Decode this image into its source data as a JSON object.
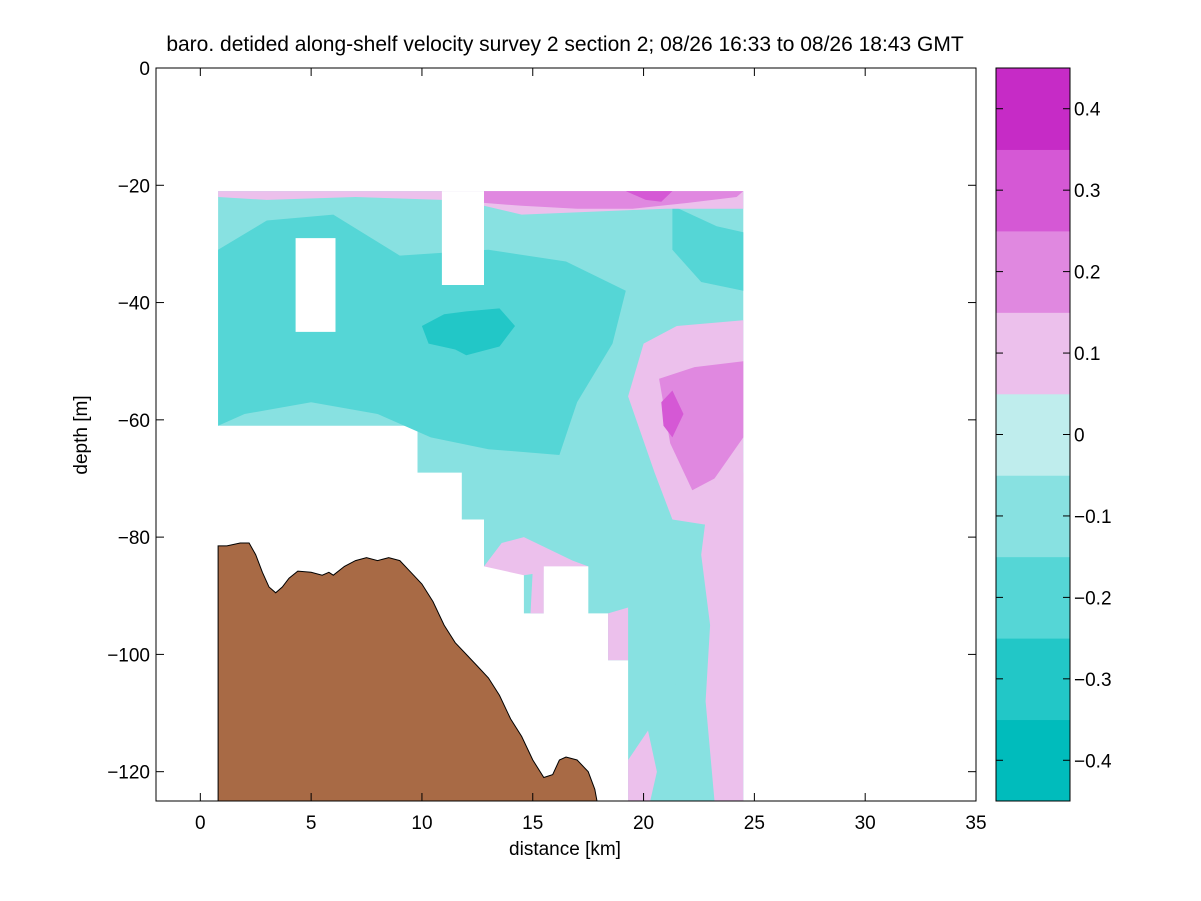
{
  "chart_data": {
    "type": "contour",
    "title": "baro. detided along-shelf velocity survey 2 section 2; 08/26 16:33 to 08/26 18:43 GMT",
    "xlabel": "distance [km]",
    "ylabel": "depth [m]",
    "xlim": [
      -2,
      35
    ],
    "ylim": [
      -125,
      0
    ],
    "xticks": [
      0,
      5,
      10,
      15,
      20,
      25,
      30,
      35
    ],
    "yticks": [
      0,
      -20,
      -40,
      -60,
      -80,
      -100,
      -120
    ],
    "colorbar": {
      "range": [
        -0.45,
        0.45
      ],
      "ticks": [
        0.4,
        0.3,
        0.2,
        0.1,
        0,
        -0.1,
        -0.2,
        -0.3,
        -0.4
      ],
      "tick_labels": [
        "0.4",
        "0.3",
        "0.2",
        "0.1",
        "0",
        "−0.1",
        "−0.2",
        "−0.3",
        "−0.4"
      ],
      "bands": [
        {
          "lo": -0.45,
          "hi": -0.35,
          "color": "#00bcbc"
        },
        {
          "lo": -0.35,
          "hi": -0.25,
          "color": "#22c7c7"
        },
        {
          "lo": -0.25,
          "hi": -0.15,
          "color": "#55d6d6"
        },
        {
          "lo": -0.15,
          "hi": -0.05,
          "color": "#88e1e1"
        },
        {
          "lo": -0.05,
          "hi": 0.05,
          "color": "#bfeded"
        },
        {
          "lo": 0.05,
          "hi": 0.15,
          "color": "#ecc0ec"
        },
        {
          "lo": 0.15,
          "hi": 0.25,
          "color": "#e088e0"
        },
        {
          "lo": 0.25,
          "hi": 0.35,
          "color": "#d558d5"
        },
        {
          "lo": 0.35,
          "hi": 0.45,
          "color": "#c62bc6"
        },
        {
          "lo": 0.45,
          "hi": 0.55,
          "color": "#bd00bd"
        }
      ]
    },
    "bottom_color": "#a86a45",
    "bathymetry": [
      [
        0.8,
        -81.5
      ],
      [
        1.2,
        -81.5
      ],
      [
        1.8,
        -81
      ],
      [
        2.2,
        -81
      ],
      [
        2.5,
        -83
      ],
      [
        2.8,
        -86
      ],
      [
        3.1,
        -88.5
      ],
      [
        3.4,
        -89.5
      ],
      [
        3.7,
        -88.5
      ],
      [
        4.0,
        -87
      ],
      [
        4.4,
        -85.8
      ],
      [
        5.0,
        -86
      ],
      [
        5.5,
        -86.5
      ],
      [
        5.8,
        -86
      ],
      [
        6.0,
        -86.5
      ],
      [
        6.5,
        -85
      ],
      [
        7.0,
        -84
      ],
      [
        7.5,
        -83.5
      ],
      [
        8.0,
        -84
      ],
      [
        8.5,
        -83.5
      ],
      [
        9.0,
        -84
      ],
      [
        9.5,
        -86
      ],
      [
        10.0,
        -88
      ],
      [
        10.5,
        -91
      ],
      [
        11.0,
        -95
      ],
      [
        11.5,
        -98
      ],
      [
        12.0,
        -100
      ],
      [
        12.5,
        -102
      ],
      [
        13.0,
        -104
      ],
      [
        13.5,
        -107
      ],
      [
        14.0,
        -111
      ],
      [
        14.5,
        -114
      ],
      [
        15.0,
        -118
      ],
      [
        15.5,
        -121
      ],
      [
        15.9,
        -120.5
      ],
      [
        16.2,
        -118
      ],
      [
        16.5,
        -117.5
      ],
      [
        17.0,
        -118
      ],
      [
        17.5,
        -120
      ],
      [
        17.8,
        -123
      ],
      [
        17.9,
        -125
      ]
    ],
    "sampled_domain": [
      [
        0.8,
        -21
      ],
      [
        24.5,
        -21
      ],
      [
        24.5,
        -125
      ],
      [
        19.3,
        -125
      ],
      [
        19.3,
        -101
      ],
      [
        18.4,
        -101
      ],
      [
        18.4,
        -93
      ],
      [
        17.5,
        -93
      ],
      [
        17.5,
        -85
      ],
      [
        15.5,
        -85
      ],
      [
        15.5,
        -93
      ],
      [
        14.6,
        -93
      ],
      [
        14.6,
        -85
      ],
      [
        12.8,
        -85
      ],
      [
        12.8,
        -77
      ],
      [
        11.8,
        -77
      ],
      [
        11.8,
        -69
      ],
      [
        9.8,
        -69
      ],
      [
        9.8,
        -61
      ],
      [
        0.8,
        -61
      ]
    ],
    "gaps": [
      [
        [
          4.3,
          -29
        ],
        [
          6.1,
          -29
        ],
        [
          6.1,
          -45
        ],
        [
          4.3,
          -45
        ]
      ],
      [
        [
          10.9,
          -21
        ],
        [
          12.8,
          -21
        ],
        [
          12.8,
          -37
        ],
        [
          10.9,
          -37
        ]
      ],
      [
        [
          15.5,
          -85
        ],
        [
          17.5,
          -85
        ],
        [
          17.5,
          -93
        ],
        [
          15.5,
          -93
        ]
      ]
    ],
    "contour_regions": [
      {
        "value": -0.2,
        "points": [
          [
            0.8,
            -31
          ],
          [
            3.0,
            -26
          ],
          [
            6.0,
            -25
          ],
          [
            9.0,
            -32
          ],
          [
            13.0,
            -31
          ],
          [
            16.5,
            -33
          ],
          [
            19.2,
            -38
          ],
          [
            18.6,
            -47
          ],
          [
            17.0,
            -57
          ],
          [
            16.2,
            -66
          ],
          [
            13.0,
            -65
          ],
          [
            10.4,
            -63
          ],
          [
            8.0,
            -59
          ],
          [
            5.0,
            -57
          ],
          [
            2.0,
            -59
          ],
          [
            0.8,
            -61
          ]
        ]
      },
      {
        "value": -0.3,
        "points": [
          [
            10.0,
            -44
          ],
          [
            11.0,
            -42
          ],
          [
            12.0,
            -41.5
          ],
          [
            13.5,
            -41
          ],
          [
            14.2,
            -44
          ],
          [
            13.5,
            -47.5
          ],
          [
            12.0,
            -49
          ],
          [
            11.5,
            -48
          ],
          [
            10.3,
            -47
          ]
        ]
      },
      {
        "value": -0.2,
        "points": [
          [
            21.3,
            -23.5
          ],
          [
            23.3,
            -27
          ],
          [
            24.5,
            -28
          ],
          [
            24.5,
            -38
          ],
          [
            22.6,
            -36.5
          ],
          [
            21.3,
            -31
          ]
        ]
      },
      {
        "value": -0.1,
        "points": [
          [
            18.3,
            -66
          ],
          [
            19.0,
            -58
          ],
          [
            19.8,
            -63
          ],
          [
            19.8,
            -72
          ],
          [
            19.0,
            -73.5
          ],
          [
            18.3,
            -71
          ]
        ]
      },
      {
        "value": -0.1,
        "points": [
          [
            21.4,
            -102
          ],
          [
            21.9,
            -98
          ],
          [
            22.7,
            -102
          ],
          [
            22.2,
            -110
          ],
          [
            21.6,
            -112
          ]
        ]
      },
      {
        "value": 0.1,
        "points": [
          [
            20.0,
            -47
          ],
          [
            21.5,
            -44
          ],
          [
            24.5,
            -43
          ],
          [
            24.5,
            -72
          ],
          [
            23.0,
            -78
          ],
          [
            21.3,
            -77
          ],
          [
            20.5,
            -69
          ],
          [
            19.3,
            -56
          ]
        ]
      },
      {
        "value": 0.2,
        "points": [
          [
            20.7,
            -53
          ],
          [
            22.3,
            -51
          ],
          [
            24.5,
            -50
          ],
          [
            24.5,
            -63
          ],
          [
            23.2,
            -70
          ],
          [
            22.2,
            -72
          ],
          [
            21.2,
            -64
          ]
        ]
      },
      {
        "value": 0.3,
        "points": [
          [
            20.8,
            -57
          ],
          [
            21.3,
            -55
          ],
          [
            21.8,
            -59
          ],
          [
            21.3,
            -63
          ],
          [
            20.9,
            -61
          ]
        ]
      },
      {
        "value": 0.1,
        "points": [
          [
            12.8,
            -85
          ],
          [
            13.6,
            -81
          ],
          [
            14.6,
            -80
          ],
          [
            16.8,
            -84
          ],
          [
            17.5,
            -85
          ],
          [
            15.5,
            -86
          ],
          [
            14.6,
            -86.5
          ]
        ]
      },
      {
        "value": 0.1,
        "points": [
          [
            15.0,
            -85.5
          ],
          [
            15.5,
            -85
          ],
          [
            15.5,
            -93
          ],
          [
            14.9,
            -93
          ]
        ]
      },
      {
        "value": 0.1,
        "points": [
          [
            18.4,
            -93
          ],
          [
            19.3,
            -92
          ],
          [
            19.3,
            -101
          ],
          [
            18.4,
            -101
          ]
        ]
      },
      {
        "value": 0.1,
        "points": [
          [
            23.0,
            -71
          ],
          [
            24.5,
            -69
          ],
          [
            24.5,
            -125
          ],
          [
            23.2,
            -125
          ],
          [
            22.8,
            -108
          ],
          [
            23.0,
            -95
          ],
          [
            22.6,
            -83
          ]
        ]
      },
      {
        "value": 0.1,
        "points": [
          [
            19.3,
            -118
          ],
          [
            20.2,
            -113
          ],
          [
            20.6,
            -120
          ],
          [
            20.3,
            -125
          ],
          [
            19.3,
            -125
          ]
        ]
      },
      {
        "value": 0.1,
        "points": [
          [
            0.8,
            -21
          ],
          [
            24.5,
            -21
          ],
          [
            24.5,
            -24
          ],
          [
            21.0,
            -24
          ],
          [
            14.5,
            -25
          ],
          [
            12.8,
            -23.5
          ],
          [
            10.9,
            -22.5
          ],
          [
            7.0,
            -22
          ],
          [
            3.0,
            -22.5
          ],
          [
            0.8,
            -22
          ]
        ]
      },
      {
        "value": 0.2,
        "points": [
          [
            12.8,
            -21
          ],
          [
            24.5,
            -21
          ],
          [
            24.2,
            -22
          ],
          [
            22.0,
            -23
          ],
          [
            19.5,
            -24
          ],
          [
            17.0,
            -24
          ],
          [
            14.5,
            -23.5
          ],
          [
            12.8,
            -23
          ]
        ]
      },
      {
        "value": 0.3,
        "points": [
          [
            19.2,
            -21
          ],
          [
            21.3,
            -21
          ],
          [
            20.8,
            -22.8
          ],
          [
            20.1,
            -22.5
          ]
        ]
      }
    ]
  }
}
